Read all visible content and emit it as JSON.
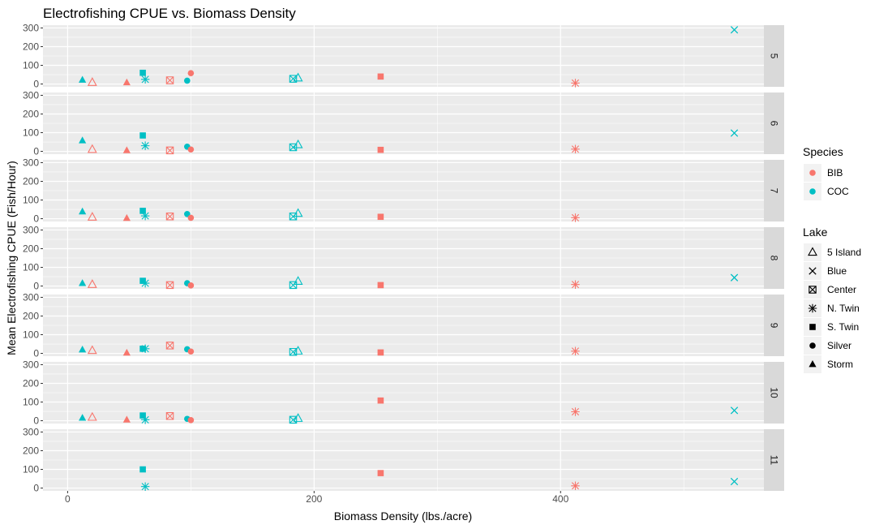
{
  "chart_data": {
    "type": "scatter",
    "title": "Electrofishing CPUE vs. Biomass Density",
    "xlabel": "Biomass Density (lbs./acre)",
    "ylabel": "Mean Electrofishing CPUE (Fish/Hour)",
    "xlim": [
      -20,
      565
    ],
    "ylim": [
      -15,
      315
    ],
    "x_ticks": [
      0,
      200,
      400
    ],
    "y_ticks": [
      0,
      100,
      200,
      300
    ],
    "grid": true,
    "legend_position": "right",
    "colors": {
      "BIB": "#F8766D",
      "COC": "#00BFC4"
    },
    "species_legend": {
      "title": "Species",
      "items": [
        "BIB",
        "COC"
      ]
    },
    "lake_legend": {
      "title": "Lake",
      "items": [
        "5 Island",
        "Blue",
        "Center",
        "N. Twin",
        "S. Twin",
        "Silver",
        "Storm"
      ]
    },
    "lake_shapes": {
      "5 Island": "triangle-open",
      "Blue": "cross-x",
      "Center": "square-x",
      "N. Twin": "asterisk",
      "S. Twin": "square",
      "Silver": "circle",
      "Storm": "triangle"
    },
    "facets": [
      {
        "label": "5",
        "points": [
          {
            "lake": "Storm",
            "species": "COC",
            "x": 12,
            "y": 22
          },
          {
            "lake": "5 Island",
            "species": "BIB",
            "x": 20,
            "y": 8
          },
          {
            "lake": "Storm",
            "species": "BIB",
            "x": 48,
            "y": 8
          },
          {
            "lake": "S. Twin",
            "species": "COC",
            "x": 61,
            "y": 60
          },
          {
            "lake": "N. Twin",
            "species": "COC",
            "x": 63,
            "y": 25
          },
          {
            "lake": "Center",
            "species": "BIB",
            "x": 83,
            "y": 20
          },
          {
            "lake": "Silver",
            "species": "COC",
            "x": 97,
            "y": 18
          },
          {
            "lake": "Silver",
            "species": "BIB",
            "x": 100,
            "y": 58
          },
          {
            "lake": "Center",
            "species": "COC",
            "x": 183,
            "y": 28
          },
          {
            "lake": "5 Island",
            "species": "COC",
            "x": 187,
            "y": 32
          },
          {
            "lake": "S. Twin",
            "species": "BIB",
            "x": 254,
            "y": 40
          },
          {
            "lake": "N. Twin",
            "species": "BIB",
            "x": 412,
            "y": 5
          },
          {
            "lake": "Blue",
            "species": "COC",
            "x": 541,
            "y": 290
          }
        ]
      },
      {
        "label": "6",
        "points": [
          {
            "lake": "Storm",
            "species": "COC",
            "x": 12,
            "y": 58
          },
          {
            "lake": "5 Island",
            "species": "BIB",
            "x": 20,
            "y": 10
          },
          {
            "lake": "Storm",
            "species": "BIB",
            "x": 48,
            "y": 5
          },
          {
            "lake": "S. Twin",
            "species": "COC",
            "x": 61,
            "y": 85
          },
          {
            "lake": "N. Twin",
            "species": "COC",
            "x": 63,
            "y": 30
          },
          {
            "lake": "Center",
            "species": "BIB",
            "x": 83,
            "y": 5
          },
          {
            "lake": "Silver",
            "species": "COC",
            "x": 97,
            "y": 25
          },
          {
            "lake": "Silver",
            "species": "BIB",
            "x": 100,
            "y": 10
          },
          {
            "lake": "Center",
            "species": "COC",
            "x": 183,
            "y": 22
          },
          {
            "lake": "5 Island",
            "species": "COC",
            "x": 187,
            "y": 35
          },
          {
            "lake": "S. Twin",
            "species": "BIB",
            "x": 254,
            "y": 8
          },
          {
            "lake": "N. Twin",
            "species": "BIB",
            "x": 412,
            "y": 12
          },
          {
            "lake": "Blue",
            "species": "COC",
            "x": 541,
            "y": 98
          }
        ]
      },
      {
        "label": "7",
        "points": [
          {
            "lake": "Storm",
            "species": "COC",
            "x": 12,
            "y": 38
          },
          {
            "lake": "5 Island",
            "species": "BIB",
            "x": 20,
            "y": 8
          },
          {
            "lake": "Storm",
            "species": "BIB",
            "x": 48,
            "y": 3
          },
          {
            "lake": "S. Twin",
            "species": "COC",
            "x": 61,
            "y": 42
          },
          {
            "lake": "N. Twin",
            "species": "COC",
            "x": 63,
            "y": 15
          },
          {
            "lake": "Center",
            "species": "BIB",
            "x": 83,
            "y": 12
          },
          {
            "lake": "Silver",
            "species": "COC",
            "x": 97,
            "y": 25
          },
          {
            "lake": "Silver",
            "species": "BIB",
            "x": 100,
            "y": 5
          },
          {
            "lake": "Center",
            "species": "COC",
            "x": 183,
            "y": 12
          },
          {
            "lake": "5 Island",
            "species": "COC",
            "x": 187,
            "y": 28
          },
          {
            "lake": "S. Twin",
            "species": "BIB",
            "x": 254,
            "y": 10
          },
          {
            "lake": "N. Twin",
            "species": "BIB",
            "x": 412,
            "y": 5
          }
        ]
      },
      {
        "label": "8",
        "points": [
          {
            "lake": "Storm",
            "species": "COC",
            "x": 12,
            "y": 15
          },
          {
            "lake": "5 Island",
            "species": "BIB",
            "x": 20,
            "y": 8
          },
          {
            "lake": "S. Twin",
            "species": "COC",
            "x": 61,
            "y": 28
          },
          {
            "lake": "N. Twin",
            "species": "COC",
            "x": 63,
            "y": 15
          },
          {
            "lake": "Center",
            "species": "BIB",
            "x": 83,
            "y": 5
          },
          {
            "lake": "Silver",
            "species": "COC",
            "x": 97,
            "y": 15
          },
          {
            "lake": "Silver",
            "species": "BIB",
            "x": 100,
            "y": 3
          },
          {
            "lake": "Center",
            "species": "COC",
            "x": 183,
            "y": 5
          },
          {
            "lake": "5 Island",
            "species": "COC",
            "x": 187,
            "y": 25
          },
          {
            "lake": "S. Twin",
            "species": "BIB",
            "x": 254,
            "y": 5
          },
          {
            "lake": "N. Twin",
            "species": "BIB",
            "x": 412,
            "y": 8
          },
          {
            "lake": "Blue",
            "species": "COC",
            "x": 541,
            "y": 45
          }
        ]
      },
      {
        "label": "9",
        "points": [
          {
            "lake": "Storm",
            "species": "COC",
            "x": 12,
            "y": 20
          },
          {
            "lake": "5 Island",
            "species": "BIB",
            "x": 20,
            "y": 15
          },
          {
            "lake": "Storm",
            "species": "BIB",
            "x": 48,
            "y": 3
          },
          {
            "lake": "S. Twin",
            "species": "COC",
            "x": 61,
            "y": 25
          },
          {
            "lake": "N. Twin",
            "species": "COC",
            "x": 63,
            "y": 25
          },
          {
            "lake": "Center",
            "species": "BIB",
            "x": 83,
            "y": 42
          },
          {
            "lake": "Silver",
            "species": "COC",
            "x": 97,
            "y": 22
          },
          {
            "lake": "Silver",
            "species": "BIB",
            "x": 100,
            "y": 10
          },
          {
            "lake": "Center",
            "species": "COC",
            "x": 183,
            "y": 8
          },
          {
            "lake": "5 Island",
            "species": "COC",
            "x": 187,
            "y": 12
          },
          {
            "lake": "S. Twin",
            "species": "BIB",
            "x": 254,
            "y": 5
          },
          {
            "lake": "N. Twin",
            "species": "BIB",
            "x": 412,
            "y": 12
          }
        ]
      },
      {
        "label": "10",
        "points": [
          {
            "lake": "Storm",
            "species": "COC",
            "x": 12,
            "y": 15
          },
          {
            "lake": "5 Island",
            "species": "BIB",
            "x": 20,
            "y": 18
          },
          {
            "lake": "Storm",
            "species": "BIB",
            "x": 48,
            "y": 5
          },
          {
            "lake": "S. Twin",
            "species": "COC",
            "x": 61,
            "y": 28
          },
          {
            "lake": "N. Twin",
            "species": "COC",
            "x": 63,
            "y": 5
          },
          {
            "lake": "Center",
            "species": "BIB",
            "x": 83,
            "y": 25
          },
          {
            "lake": "Silver",
            "species": "COC",
            "x": 97,
            "y": 10
          },
          {
            "lake": "Silver",
            "species": "BIB",
            "x": 100,
            "y": 3
          },
          {
            "lake": "Center",
            "species": "COC",
            "x": 183,
            "y": 5
          },
          {
            "lake": "5 Island",
            "species": "COC",
            "x": 187,
            "y": 12
          },
          {
            "lake": "S. Twin",
            "species": "BIB",
            "x": 254,
            "y": 108
          },
          {
            "lake": "N. Twin",
            "species": "BIB",
            "x": 412,
            "y": 48
          },
          {
            "lake": "Blue",
            "species": "COC",
            "x": 541,
            "y": 55
          }
        ]
      },
      {
        "label": "11",
        "points": [
          {
            "lake": "S. Twin",
            "species": "COC",
            "x": 61,
            "y": 100
          },
          {
            "lake": "N. Twin",
            "species": "COC",
            "x": 63,
            "y": 8
          },
          {
            "lake": "S. Twin",
            "species": "BIB",
            "x": 254,
            "y": 80
          },
          {
            "lake": "N. Twin",
            "species": "BIB",
            "x": 412,
            "y": 12
          },
          {
            "lake": "Blue",
            "species": "COC",
            "x": 541,
            "y": 35
          }
        ]
      }
    ]
  }
}
